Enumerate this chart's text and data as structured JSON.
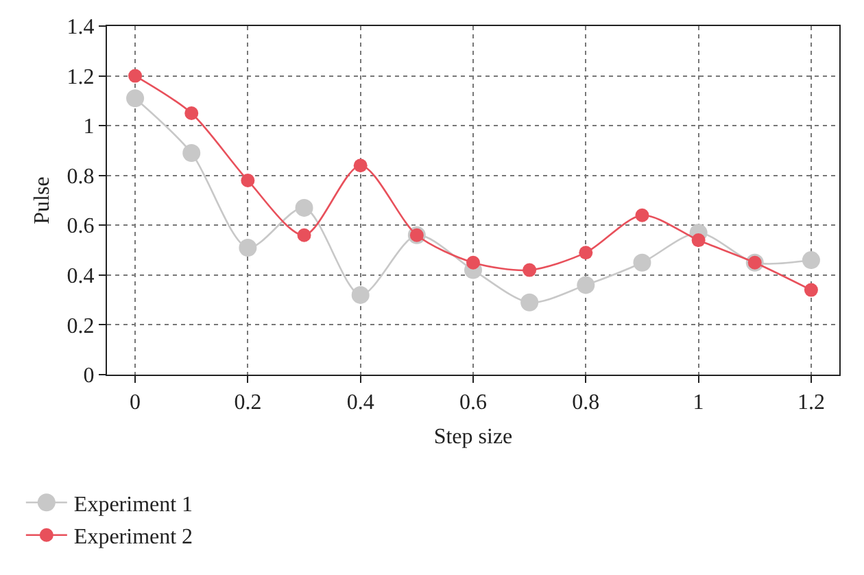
{
  "chart_data": {
    "type": "line",
    "xlabel": "Step size",
    "ylabel": "Pulse",
    "x": [
      0,
      0.1,
      0.2,
      0.3,
      0.4,
      0.5,
      0.6,
      0.7,
      0.8,
      0.9,
      1,
      1.1,
      1.2
    ],
    "series": [
      {
        "name": "Experiment 1",
        "color": "#c8c8c8",
        "values": [
          1.11,
          0.89,
          0.51,
          0.67,
          0.32,
          0.56,
          0.42,
          0.29,
          0.36,
          0.45,
          0.57,
          0.45,
          0.46
        ]
      },
      {
        "name": "Experiment 2",
        "color": "#e8505b",
        "values": [
          1.2,
          1.05,
          0.78,
          0.56,
          0.84,
          0.56,
          0.45,
          0.42,
          0.49,
          0.64,
          0.54,
          0.45,
          0.34
        ]
      }
    ],
    "xlim": [
      -0.05,
      1.25
    ],
    "xticks": [
      0,
      0.2,
      0.4,
      0.6,
      0.8,
      1,
      1.2
    ],
    "ylim": [
      0,
      1.4
    ],
    "yticks": [
      0,
      0.2,
      0.4,
      0.6,
      0.8,
      1,
      1.2,
      1.4
    ],
    "grid": true,
    "legend": "bottom left",
    "marker": "circle",
    "line_style": "solid"
  }
}
